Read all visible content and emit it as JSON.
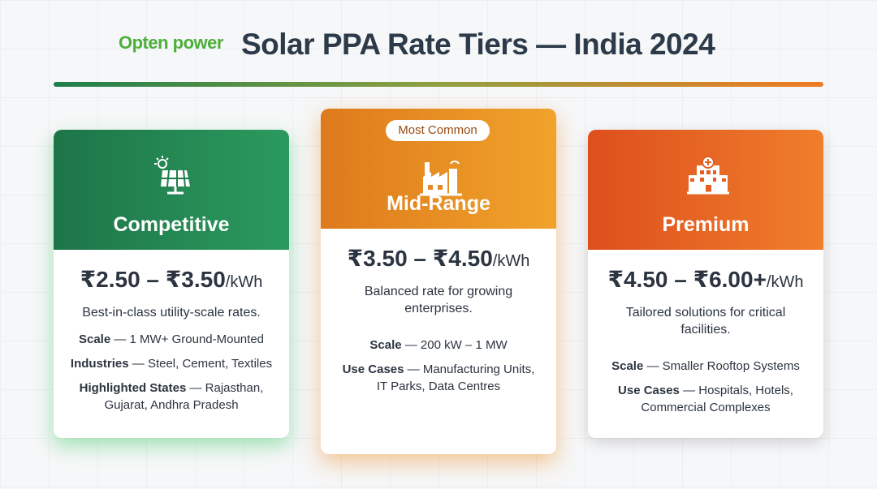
{
  "header": {
    "logo": "Opten power",
    "title": "Solar PPA Rate Tiers — India 2024"
  },
  "cards": [
    {
      "name": "Competitive",
      "price": "₹2.50 – ₹3.50",
      "unit": "/kWh",
      "description": "Best-in-class utility-scale rates.",
      "details": [
        {
          "label": "Scale",
          "text": "— 1 MW+ Ground-Mounted"
        },
        {
          "label": "Industries",
          "text": "— Steel, Cement, Textiles"
        },
        {
          "label": "Highlighted States",
          "text": "— Rajasthan, Gujarat, Andhra Pradesh"
        }
      ]
    },
    {
      "name": "Mid-Range",
      "badge": "Most Common",
      "price": "₹3.50 – ₹4.50",
      "unit": "/kWh",
      "description": "Balanced rate for growing enterprises.",
      "details": [
        {
          "label": "Scale",
          "text": "— 200 kW – 1 MW"
        },
        {
          "label": "Use Cases",
          "text": "— Manufacturing Units, IT Parks, Data Centres"
        }
      ]
    },
    {
      "name": "Premium",
      "price": "₹4.50 – ₹6.00+",
      "unit": "/kWh",
      "description": "Tailored solutions for critical facilities.",
      "details": [
        {
          "label": "Scale",
          "text": "— Smaller Rooftop Systems"
        },
        {
          "label": "Use Cases",
          "text": "— Hospitals, Hotels, Commercial Complexes"
        }
      ]
    }
  ]
}
